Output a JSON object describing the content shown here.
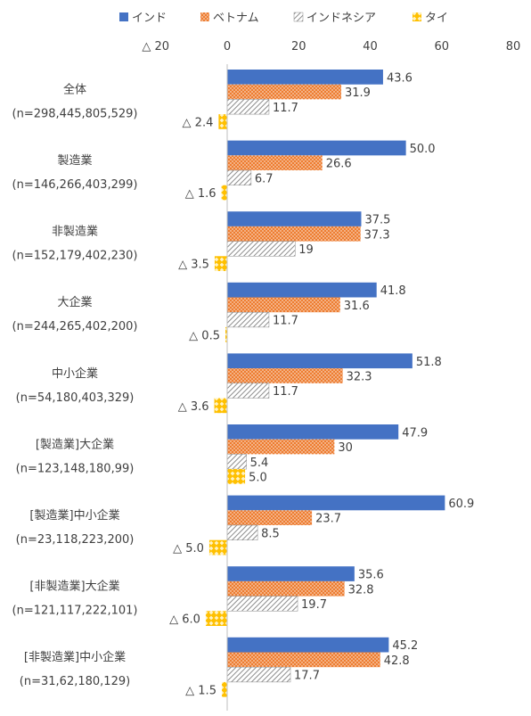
{
  "chart_data": {
    "type": "bar",
    "orientation": "horizontal",
    "xlim": [
      -20,
      80
    ],
    "xticks": [
      -20,
      0,
      20,
      40,
      60,
      80
    ],
    "xtick_labels": [
      "△ 20",
      "0",
      "20",
      "40",
      "60",
      "80"
    ],
    "grid": false,
    "legend_position": "top",
    "categories": [
      [
        "全体",
        "(n=298,445,805,529)"
      ],
      [
        "製造業",
        "(n=146,266,403,299)"
      ],
      [
        "非製造業",
        "(n=152,179,402,230)"
      ],
      [
        "大企業",
        "(n=244,265,402,200)"
      ],
      [
        "中小企業",
        "(n=54,180,403,329)"
      ],
      [
        "[製造業]大企業",
        "(n=123,148,180,99)"
      ],
      [
        "[製造業]中小企業",
        "(n=23,118,223,200)"
      ],
      [
        "[非製造業]大企業",
        "(n=121,117,222,101)"
      ],
      [
        "[非製造業]中小企業",
        "(n=31,62,180,129)"
      ]
    ],
    "series": [
      {
        "name": "インド",
        "color": "#4472c4",
        "pattern": "solid",
        "values": [
          43.6,
          50.0,
          37.5,
          41.8,
          51.8,
          47.9,
          60.9,
          35.6,
          45.2
        ],
        "labels": [
          "43.6",
          "50.0",
          "37.5",
          "41.8",
          "51.8",
          "47.9",
          "60.9",
          "35.6",
          "45.2"
        ]
      },
      {
        "name": "ベトナム",
        "color": "#ed7d31",
        "pattern": "dots",
        "values": [
          31.9,
          26.6,
          37.3,
          31.6,
          32.3,
          30,
          23.7,
          32.8,
          42.8
        ],
        "labels": [
          "31.9",
          "26.6",
          "37.3",
          "31.6",
          "32.3",
          "30",
          "23.7",
          "32.8",
          "42.8"
        ]
      },
      {
        "name": "インドネシア",
        "color": "#a5a5a5",
        "pattern": "diagonal",
        "values": [
          11.7,
          6.7,
          19,
          11.7,
          11.7,
          5.4,
          8.5,
          19.7,
          17.7
        ],
        "labels": [
          "11.7",
          "6.7",
          "19",
          "11.7",
          "11.7",
          "5.4",
          "8.5",
          "19.7",
          "17.7"
        ]
      },
      {
        "name": "タイ",
        "color": "#ffc000",
        "pattern": "diamond",
        "values": [
          -2.4,
          -1.6,
          -3.5,
          -0.5,
          -3.6,
          5.0,
          -5.0,
          -6.0,
          -1.5
        ],
        "labels": [
          "△ 2.4",
          "△ 1.6",
          "△ 3.5",
          "△ 0.5",
          "△ 3.6",
          "5.0",
          "△ 5.0",
          "△ 6.0",
          "△ 1.5"
        ]
      }
    ]
  }
}
